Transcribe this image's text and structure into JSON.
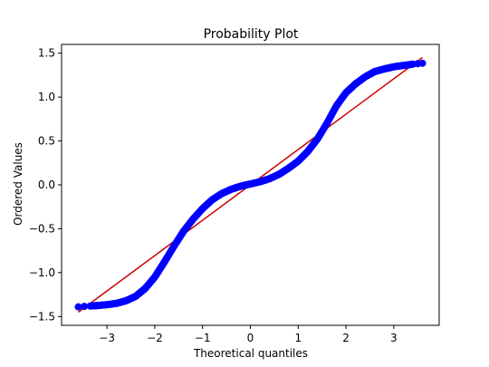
{
  "chart_data": {
    "type": "scatter",
    "title": "Probability Plot",
    "xlabel": "Theoretical quantiles",
    "ylabel": "Ordered Values",
    "xlim": [
      -3.95,
      3.95
    ],
    "ylim": [
      -1.6,
      1.6
    ],
    "x_ticks": [
      -3,
      -2,
      -1,
      0,
      1,
      2,
      3
    ],
    "x_tick_labels": [
      "−3",
      "−2",
      "−1",
      "0",
      "1",
      "2",
      "3"
    ],
    "y_ticks": [
      -1.5,
      -1.0,
      -0.5,
      0.0,
      0.5,
      1.0,
      1.5
    ],
    "y_tick_labels": [
      "−1.5",
      "−1.0",
      "−0.5",
      "0.0",
      "0.5",
      "1.0",
      "1.5"
    ],
    "grid": false,
    "series": [
      {
        "kind": "points",
        "color": "#0000ff",
        "points": [
          [
            -3.6,
            -1.39
          ],
          [
            -3.35,
            -1.38
          ],
          [
            -3.2,
            -1.375
          ],
          [
            -3.0,
            -1.365
          ],
          [
            -2.8,
            -1.35
          ],
          [
            -2.6,
            -1.32
          ],
          [
            -2.4,
            -1.27
          ],
          [
            -2.2,
            -1.18
          ],
          [
            -2.0,
            -1.05
          ],
          [
            -1.8,
            -0.88
          ],
          [
            -1.6,
            -0.7
          ],
          [
            -1.4,
            -0.53
          ],
          [
            -1.2,
            -0.39
          ],
          [
            -1.0,
            -0.27
          ],
          [
            -0.8,
            -0.17
          ],
          [
            -0.6,
            -0.1
          ],
          [
            -0.4,
            -0.05
          ],
          [
            -0.2,
            -0.015
          ],
          [
            0.0,
            0.01
          ],
          [
            0.2,
            0.035
          ],
          [
            0.4,
            0.07
          ],
          [
            0.6,
            0.12
          ],
          [
            0.8,
            0.19
          ],
          [
            1.0,
            0.27
          ],
          [
            1.2,
            0.38
          ],
          [
            1.4,
            0.52
          ],
          [
            1.6,
            0.7
          ],
          [
            1.8,
            0.9
          ],
          [
            2.0,
            1.05
          ],
          [
            2.2,
            1.15
          ],
          [
            2.4,
            1.23
          ],
          [
            2.6,
            1.29
          ],
          [
            2.8,
            1.32
          ],
          [
            3.0,
            1.345
          ],
          [
            3.2,
            1.36
          ],
          [
            3.4,
            1.375
          ],
          [
            3.6,
            1.385
          ]
        ]
      },
      {
        "kind": "fit-line",
        "color": "#cc0000",
        "points": [
          [
            -3.6,
            -1.45
          ],
          [
            3.6,
            1.45
          ]
        ]
      }
    ]
  }
}
